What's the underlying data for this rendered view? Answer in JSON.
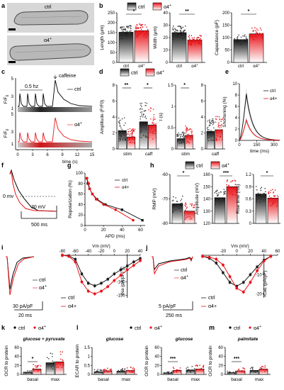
{
  "legend": {
    "ctrl": "ctrl",
    "a4": "α4",
    "a4_sup": "+"
  },
  "colors": {
    "ctrl": "#1a1a1a",
    "a4": "#e8141a",
    "ctrl_fill": "#555555",
    "a4_fill": "#f05a5a",
    "shade": "#bbbbbb"
  },
  "chart_data": [
    {
      "panel": "a",
      "type": "image",
      "labels": [
        "ctrl",
        "α4+"
      ]
    },
    {
      "panel": "b",
      "type": "bar",
      "categories": [
        "ctrl",
        "α4+"
      ],
      "ylabel": "Length (μm)",
      "yticks": [
        0,
        50,
        100,
        150,
        200,
        250
      ],
      "ylim": [
        0,
        250
      ],
      "values": [
        152,
        160
      ],
      "sig": "*"
    },
    {
      "panel": "b",
      "type": "bar",
      "categories": [
        "ctrl",
        "α4+"
      ],
      "ylabel": "Width (μm)",
      "yticks": [
        0,
        10,
        20,
        30,
        40
      ],
      "ylim": [
        0,
        40
      ],
      "values": [
        24,
        18
      ],
      "sig": "**"
    },
    {
      "panel": "b",
      "type": "bar",
      "categories": [
        "ctrl",
        "α4+"
      ],
      "ylabel": "Capacitance (pF)",
      "yticks": [
        0,
        50,
        100,
        150,
        200
      ],
      "ylim": [
        0,
        200
      ],
      "values": [
        92,
        115
      ],
      "sig": "*"
    },
    {
      "panel": "c",
      "type": "line",
      "xlabel": "time (s)",
      "ylabel": "F/F0",
      "xticks": [
        0,
        3,
        6,
        9,
        12,
        15
      ],
      "annotations": [
        "0.5 hz",
        "caffeine"
      ],
      "series": [
        {
          "name": "ctrl"
        },
        {
          "name": "α4+"
        }
      ]
    },
    {
      "panel": "d",
      "type": "bar",
      "ylabel": "Amplitude (F/F0)",
      "categories": [
        "stim",
        "caff"
      ],
      "yticks": [
        0,
        2,
        4,
        6,
        8
      ],
      "ylim": [
        0,
        8
      ],
      "series": [
        {
          "name": "ctrl",
          "values": [
            2.3,
            3.4
          ]
        },
        {
          "name": "α4+",
          "values": [
            1.5,
            3.0
          ]
        }
      ],
      "sig": [
        "**",
        "*"
      ]
    },
    {
      "panel": "d",
      "type": "bar",
      "ylabel": "τ (s)",
      "categories": [
        "stim"
      ],
      "yticks": [
        0,
        0.5,
        1.0,
        1.5
      ],
      "ylim": [
        0,
        1.5
      ],
      "series": [
        {
          "name": "ctrl",
          "values": [
            0.24
          ]
        },
        {
          "name": "α4+",
          "values": [
            0.32
          ]
        }
      ],
      "sig": [
        "*"
      ]
    },
    {
      "panel": "d",
      "type": "bar",
      "ylabel": "",
      "categories": [
        "caff"
      ],
      "yticks": [
        0,
        2,
        4,
        6,
        8
      ],
      "ylim": [
        0,
        8
      ],
      "series": [
        {
          "name": "ctrl",
          "values": [
            2.2
          ]
        },
        {
          "name": "α4+",
          "values": [
            2.4
          ]
        }
      ]
    },
    {
      "panel": "e",
      "type": "line",
      "ylabel": "Shortening (%)",
      "xlabel": "time (ms)",
      "xticks": [
        0,
        150,
        300
      ],
      "yticks": [
        0,
        2,
        4,
        6,
        8,
        10
      ],
      "ylim": [
        0,
        10
      ],
      "series": [
        {
          "name": "ctrl",
          "peak": 8.2
        },
        {
          "name": "α4+",
          "peak": 3.6
        }
      ]
    },
    {
      "panel": "f",
      "type": "line",
      "annotations": [
        "0 mv",
        "30 mV",
        "500 ms"
      ]
    },
    {
      "panel": "g",
      "type": "line",
      "ylabel": "Repolarization (%)",
      "xlabel": "APD (ms)",
      "xticks": [
        0,
        20,
        40,
        60
      ],
      "yticks": [
        0,
        20,
        40,
        60,
        80,
        100
      ],
      "xlim": [
        0,
        65
      ],
      "ylim": [
        0,
        100
      ],
      "series": [
        {
          "name": "ctrl",
          "x": [
            2,
            3,
            5,
            8,
            13,
            22,
            40,
            62
          ],
          "y": [
            10,
            20,
            30,
            40,
            50,
            60,
            70,
            90
          ]
        },
        {
          "name": "α4+",
          "x": [
            2,
            4,
            5,
            8,
            12,
            20,
            33,
            52
          ],
          "y": [
            10,
            20,
            30,
            40,
            50,
            60,
            70,
            90
          ]
        }
      ]
    },
    {
      "panel": "h",
      "type": "bar",
      "ylabel": "RMP (mV)",
      "categories": [
        "ctrl",
        "α4+"
      ],
      "yticks": [
        -60,
        -70,
        -80
      ],
      "ylim": [
        -80,
        -60
      ],
      "values": [
        -72,
        -75
      ],
      "sig": "*"
    },
    {
      "panel": "h",
      "type": "bar",
      "ylabel": "Amplitude (mV)",
      "categories": [
        "ctrl",
        "α4+"
      ],
      "yticks": [
        120,
        130,
        140,
        150,
        160
      ],
      "ylim": [
        120,
        160
      ],
      "values": [
        141,
        150
      ],
      "sig": "***"
    },
    {
      "panel": "h",
      "type": "bar",
      "ylabel": "Rise time (ms)",
      "categories": [
        "ctrl",
        "α4+"
      ],
      "yticks": [
        0,
        0.3,
        0.6,
        0.9,
        1.2
      ],
      "ylim": [
        0,
        1.2
      ],
      "values": [
        0.72,
        0.62
      ],
      "sig": "*"
    },
    {
      "panel": "i",
      "type": "line",
      "annotations": [
        "30 pA/pF",
        "20 ms"
      ]
    },
    {
      "panel": "i",
      "type": "line",
      "xlabel": "Vm (mV)",
      "ylabel": "INa (pA/pF)",
      "xticks": [
        -80,
        -60,
        -40,
        -20,
        0,
        20,
        40
      ],
      "yticks": [
        -50,
        -100,
        -150
      ],
      "xlim": [
        -80,
        40
      ],
      "ylim": [
        -160,
        0
      ],
      "series": [
        {
          "name": "ctrl",
          "x": [
            -80,
            -70,
            -60,
            -50,
            -40,
            -30,
            -20,
            -10,
            0,
            10,
            20,
            30,
            40
          ],
          "y": [
            0,
            -2,
            -15,
            -70,
            -105,
            -115,
            -105,
            -90,
            -70,
            -55,
            -40,
            -25,
            -12
          ]
        },
        {
          "name": "α4+",
          "x": [
            -80,
            -70,
            -60,
            -50,
            -40,
            -30,
            -20,
            -10,
            0,
            10,
            20,
            30,
            40
          ],
          "y": [
            0,
            -4,
            -25,
            -100,
            -135,
            -145,
            -135,
            -118,
            -95,
            -75,
            -55,
            -38,
            -20
          ]
        }
      ]
    },
    {
      "panel": "j",
      "type": "line",
      "annotations": [
        "5 pA/pF",
        "250 ms"
      ]
    },
    {
      "panel": "j",
      "type": "line",
      "xlabel": "Vm (mV)",
      "ylabel": "ICaL (pA/pF)",
      "xticks": [
        -20,
        0,
        20,
        40,
        60
      ],
      "yticks": [
        -10,
        -20
      ],
      "xlim": [
        -50,
        60
      ],
      "ylim": [
        -22,
        0
      ],
      "series": [
        {
          "name": "ctrl",
          "x": [
            -50,
            -40,
            -30,
            -20,
            -10,
            0,
            10,
            20,
            30,
            40,
            50
          ],
          "y": [
            -0.5,
            -1.5,
            -4,
            -9,
            -14,
            -16,
            -14,
            -10,
            -6,
            -2.5,
            -0.5
          ]
        },
        {
          "name": "α4+",
          "x": [
            -50,
            -40,
            -30,
            -20,
            -10,
            0,
            10,
            20,
            30,
            40,
            50
          ],
          "y": [
            -0.5,
            -1,
            -2,
            -5,
            -11,
            -17,
            -19,
            -14,
            -8,
            -3,
            -0.5
          ]
        }
      ]
    },
    {
      "panel": "k",
      "type": "bar",
      "title": "glucose + pyruvate",
      "ylabel": "OCR to protein",
      "categories": [
        "basal",
        "max"
      ],
      "yticks": [
        0,
        20,
        40,
        60
      ],
      "ylim": [
        0,
        60
      ],
      "series": [
        {
          "name": "ctrl",
          "values": [
            5,
            26
          ]
        },
        {
          "name": "α4+",
          "values": [
            12,
            28
          ]
        }
      ],
      "sig": [
        "*"
      ]
    },
    {
      "panel": "l",
      "type": "bar",
      "title": "glucose",
      "ylabel": "ECAR to protein",
      "categories": [
        "basal",
        "max"
      ],
      "yticks": [
        0,
        0.5,
        1.0,
        1.5
      ],
      "ylim": [
        0,
        1.5
      ],
      "series": [
        {
          "name": "ctrl",
          "values": [
            0.15,
            0.18
          ]
        },
        {
          "name": "α4+",
          "values": [
            0.2,
            0.22
          ]
        }
      ]
    },
    {
      "panel": "l",
      "type": "bar",
      "title": "glucose",
      "ylabel": "OCR to protein",
      "categories": [
        "basal",
        "max"
      ],
      "yticks": [
        0,
        20,
        40,
        60
      ],
      "ylim": [
        0,
        60
      ],
      "series": [
        {
          "name": "ctrl",
          "values": [
            3,
            10
          ]
        },
        {
          "name": "α4+",
          "values": [
            9,
            12
          ]
        }
      ],
      "sig": [
        "***"
      ]
    },
    {
      "panel": "m",
      "type": "bar",
      "title": "palmitate",
      "ylabel": "OCR to protein",
      "categories": [
        "basal",
        "max"
      ],
      "yticks": [
        0,
        20,
        40,
        60
      ],
      "ylim": [
        0,
        60
      ],
      "series": [
        {
          "name": "ctrl",
          "values": [
            4,
            9
          ]
        },
        {
          "name": "α4+",
          "values": [
            8,
            12
          ]
        }
      ],
      "sig": [
        "***"
      ]
    }
  ]
}
